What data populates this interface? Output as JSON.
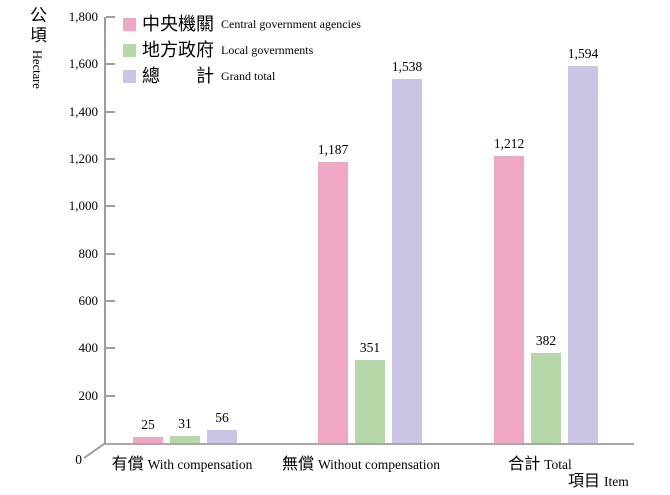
{
  "chart_data": {
    "type": "bar",
    "title": "",
    "legend_position": "top-left",
    "grid": false,
    "axis_color": "#9E9E9E",
    "y_axis": {
      "label_zh": "公頃",
      "label_en": "Hectare",
      "min": 0,
      "max": 1800,
      "tick_step": 200,
      "tick_values": [
        1800,
        1600,
        1400,
        1200,
        1000,
        800,
        600,
        400,
        200
      ],
      "tick_labels": [
        "1,800",
        "1,600",
        "1,400",
        "1,200",
        "1,000",
        "800",
        "600",
        "400",
        "200"
      ],
      "origin_label": "0"
    },
    "x_axis": {
      "label_zh": "項目",
      "label_en": "Item"
    },
    "categories": [
      {
        "zh": "有償",
        "en": "With compensation"
      },
      {
        "zh": "無償",
        "en": "Without compensation"
      },
      {
        "zh": "合計",
        "en": "Total"
      }
    ],
    "series": [
      {
        "name_zh": "中央機關",
        "name_en": "Central government agencies",
        "color": "#F0A7C5",
        "values": [
          25,
          1187,
          1212
        ],
        "value_labels": [
          "25",
          "1,187",
          "1,212"
        ]
      },
      {
        "name_zh": "地方政府",
        "name_en": "Local governments",
        "color": "#B6D8A9",
        "values": [
          31,
          351,
          382
        ],
        "value_labels": [
          "31",
          "351",
          "382"
        ]
      },
      {
        "name_zh": "總　　計",
        "name_en": "Grand total",
        "color": "#C9C5E3",
        "values": [
          56,
          1538,
          1594
        ],
        "value_labels": [
          "56",
          "1,538",
          "1,594"
        ]
      }
    ]
  }
}
